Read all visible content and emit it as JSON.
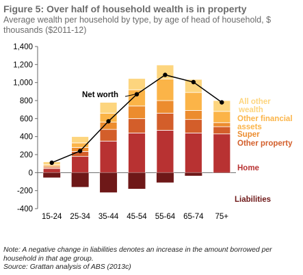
{
  "title": "Figure 5: Over half of household wealth is in property",
  "subtitle": "Average wealth per household by type, by age of head of household, $ thousands ($2011-12)",
  "note": "Note: A negative change in liabilities denotes an increase in the amount borrowed per household in that age group.",
  "source": "Source: Grattan analysis of ABS (2013c)",
  "chart_data": {
    "type": "bar",
    "stacked": true,
    "categories": [
      "15-24",
      "25-34",
      "35-44",
      "45-54",
      "55-64",
      "65-74",
      "75+"
    ],
    "ylim": [
      -400,
      1400
    ],
    "yticks": [
      -400,
      -200,
      0,
      200,
      400,
      600,
      800,
      1000,
      1200,
      1400
    ],
    "ytick_labels": [
      "-400",
      "-200",
      "0",
      "200",
      "400",
      "600",
      "800",
      "1,000",
      "1,200",
      "1,400"
    ],
    "grid": false,
    "series": [
      {
        "name": "Home",
        "color": "#b83232",
        "values": [
          45,
          180,
          350,
          440,
          470,
          440,
          430
        ]
      },
      {
        "name": "Other property",
        "color": "#d35e2a",
        "values": [
          15,
          55,
          130,
          160,
          190,
          150,
          80
        ]
      },
      {
        "name": "Super",
        "color": "#ec8c2e",
        "values": [
          15,
          45,
          80,
          140,
          140,
          100,
          45
        ]
      },
      {
        "name": "Other financial assets",
        "color": "#fbb448",
        "values": [
          15,
          50,
          100,
          180,
          240,
          200,
          125
        ]
      },
      {
        "name": "All other wealth",
        "color": "#fdd57e",
        "values": [
          30,
          70,
          120,
          125,
          155,
          145,
          120
        ]
      },
      {
        "name": "Liabilities",
        "color": "#6e1818",
        "values": [
          -55,
          -160,
          -220,
          -180,
          -110,
          -35,
          -5
        ]
      }
    ],
    "line": {
      "name": "Net worth",
      "values": [
        110,
        240,
        570,
        870,
        1085,
        1005,
        780
      ]
    },
    "annotations": {
      "net_worth_label": "Net worth",
      "legend_labels": [
        "All other wealth",
        "Other financial assets",
        "Super",
        "Other property",
        "Home",
        "Liabilities"
      ]
    }
  }
}
